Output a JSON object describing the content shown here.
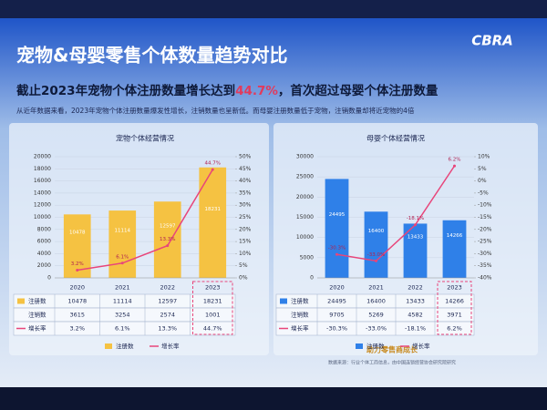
{
  "header": {
    "title": "宠物&母婴零售个体数量趋势对比",
    "logo": "CBRA"
  },
  "headline": {
    "before": "截止2023年宠物个体注册数量增长达到",
    "highlight": "44.7%",
    "after": "，首次超过母婴个体注册数量"
  },
  "description": "从近年数据来看，2023年宠物个体注册数量爆发性增长，注销数量也呈新低。而母婴注册数量低于宠物，注销数量却将近宠物的4倍",
  "footer": {
    "slogan": "助力零售商成长",
    "source": "数据来源：行业个体工商信息，由中国连锁经营协会研究院研究"
  },
  "chart_data": [
    {
      "type": "bar",
      "title": "宠物个体经营情况",
      "categories": [
        "2020",
        "2021",
        "2022",
        "2023"
      ],
      "series": [
        {
          "name": "注册数",
          "color": "#f5c242",
          "values": [
            10478,
            11114,
            12597,
            18231
          ]
        },
        {
          "name": "注销数",
          "values": [
            3615,
            3254,
            2574,
            1001
          ]
        },
        {
          "name": "增长率",
          "color": "#e8457a",
          "values": [
            3.2,
            6.1,
            13.3,
            44.7
          ],
          "value_labels": [
            "3.2%",
            "6.1%",
            "13.3%",
            "44.7%"
          ],
          "axis": "y2"
        }
      ],
      "ylim": [
        0,
        20000
      ],
      "yticks": [
        0,
        2000,
        4000,
        6000,
        8000,
        10000,
        12000,
        14000,
        16000,
        18000,
        20000
      ],
      "y2lim": [
        0,
        50
      ],
      "y2ticks": [
        {
          "value": 0,
          "label": "0%"
        },
        {
          "value": 5,
          "label": "5%"
        },
        {
          "value": 10,
          "label": "10%"
        },
        {
          "value": 15,
          "label": "15%"
        },
        {
          "value": 20,
          "label": "20%"
        },
        {
          "value": 25,
          "label": "25%"
        },
        {
          "value": 30,
          "label": "30%"
        },
        {
          "value": 35,
          "label": "35%"
        },
        {
          "value": 40,
          "label": "40%"
        },
        {
          "value": 45,
          "label": "45%"
        },
        {
          "value": 50,
          "label": "50%"
        }
      ],
      "grid": true
    },
    {
      "type": "bar",
      "title": "母婴个体经营情况",
      "categories": [
        "2020",
        "2021",
        "2022",
        "2023"
      ],
      "series": [
        {
          "name": "注册数",
          "color": "#2f80e8",
          "values": [
            24495,
            16400,
            13433,
            14266
          ]
        },
        {
          "name": "注销数",
          "values": [
            9705,
            5269,
            4582,
            3971
          ]
        },
        {
          "name": "增长率",
          "color": "#e8457a",
          "values": [
            -30.3,
            -33.0,
            -18.1,
            6.2
          ],
          "value_labels": [
            "-30.3%",
            "-33.0%",
            "-18.1%",
            "6.2%"
          ],
          "axis": "y2"
        }
      ],
      "ylim": [
        0,
        30000
      ],
      "yticks": [
        0,
        5000,
        10000,
        15000,
        20000,
        25000,
        30000
      ],
      "y2lim": [
        -40,
        10
      ],
      "y2ticks": [
        {
          "value": -40,
          "label": "-40%"
        },
        {
          "value": -35,
          "label": "-35%"
        },
        {
          "value": -30,
          "label": "-30%"
        },
        {
          "value": -25,
          "label": "-25%"
        },
        {
          "value": -20,
          "label": "-20%"
        },
        {
          "value": -15,
          "label": "-15%"
        },
        {
          "value": -10,
          "label": "-10%"
        },
        {
          "value": -5,
          "label": "-5%"
        },
        {
          "value": 0,
          "label": "0%"
        },
        {
          "value": 5,
          "label": "5%"
        },
        {
          "value": 10,
          "label": "10%"
        }
      ],
      "grid": true
    }
  ]
}
